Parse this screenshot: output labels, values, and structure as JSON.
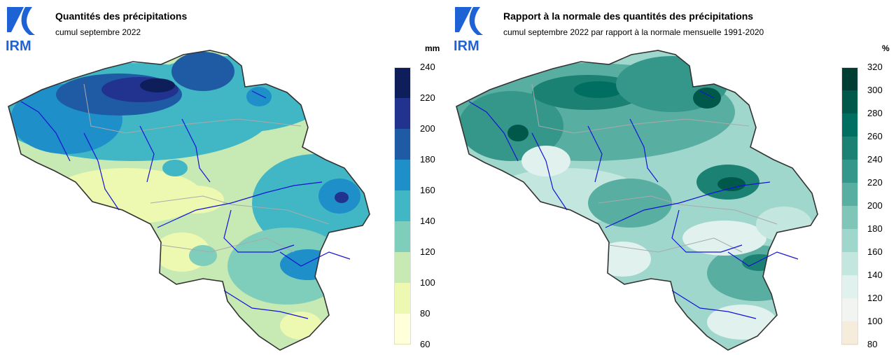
{
  "left_panel": {
    "logo_text": "IRM",
    "title": "Quantités des précipitations",
    "subtitle": "cumul septembre 2022",
    "unit": "mm",
    "legend": {
      "ticks": [
        "240",
        "220",
        "200",
        "180",
        "160",
        "140",
        "120",
        "100",
        "80",
        "60"
      ],
      "colors": [
        "#0e1e5b",
        "#22328f",
        "#1f5aa5",
        "#1e8fc8",
        "#41b6c4",
        "#7fcdbb",
        "#c7e9b4",
        "#edf8b1",
        "#ffffd9"
      ]
    }
  },
  "right_panel": {
    "logo_text": "IRM",
    "title": "Rapport à la normale des quantités des précipitations",
    "subtitle": "cumul septembre 2022 par rapport à la normale mensuelle 1991-2020",
    "unit": "%",
    "legend": {
      "ticks": [
        "320",
        "300",
        "280",
        "260",
        "240",
        "220",
        "200",
        "180",
        "160",
        "140",
        "120",
        "100",
        "80"
      ],
      "colors": [
        "#003d33",
        "#00584a",
        "#006f61",
        "#1b8273",
        "#35968a",
        "#58aea1",
        "#7fc6b9",
        "#a0d7cd",
        "#c3e6df",
        "#e0f1ee",
        "#f2f4f2",
        "#f5ecdb"
      ]
    }
  }
}
